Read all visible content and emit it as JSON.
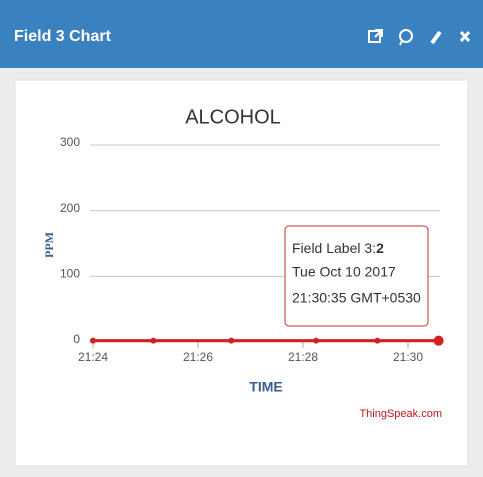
{
  "header": {
    "title": "Field 3 Chart"
  },
  "chart_data": {
    "type": "line",
    "title": "ALCOHOL",
    "x_label": "TIME",
    "y_label": "PPM",
    "x": [
      "21:24:00",
      "21:25:09",
      "21:26:38",
      "21:28:15",
      "21:29:25",
      "21:30:35"
    ],
    "series": [
      {
        "name": "Field Label 3",
        "color": "#d62020",
        "values": [
          2,
          2,
          2,
          2,
          2,
          2
        ]
      }
    ],
    "xlim": [
      "21:24",
      "21:30:40"
    ],
    "xticks": [
      "21:24",
      "21:26",
      "21:28",
      "21:30"
    ],
    "ylim": [
      0,
      300
    ],
    "yticks": [
      0,
      100,
      200,
      300
    ],
    "grid": true,
    "tooltip": {
      "label": "Field Label 3:",
      "date": "Tue Oct 10 2017",
      "time": "21:30:35 GMT+0530"
    },
    "credit": "ThingSpeak.com"
  }
}
